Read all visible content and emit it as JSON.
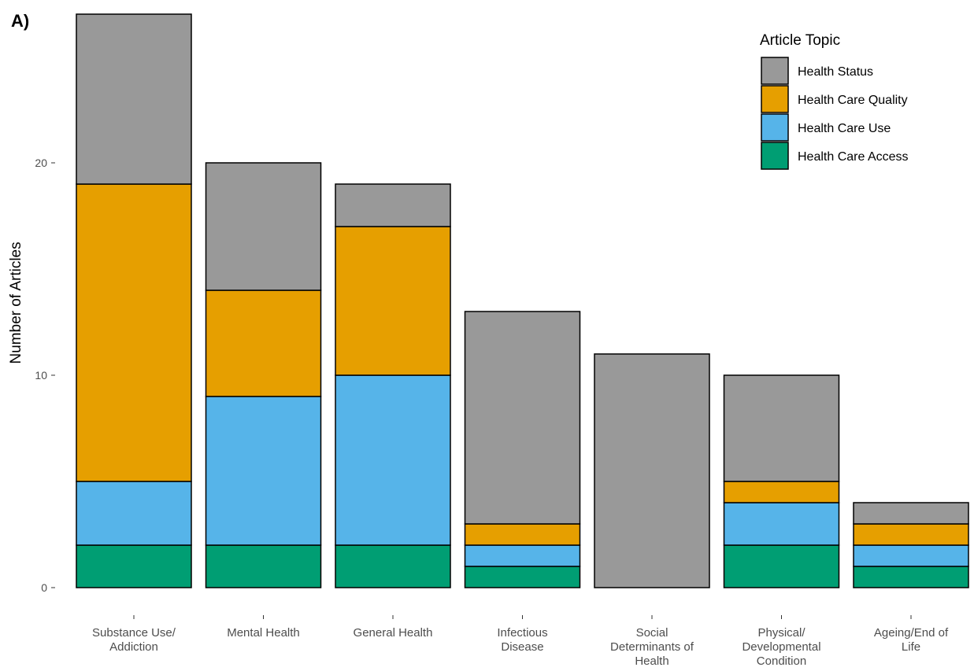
{
  "panel_label": "A)",
  "chart_data": {
    "type": "bar",
    "stacked": true,
    "title": "",
    "xlabel": "",
    "ylabel": "Number of Articles",
    "ylim": [
      0,
      27
    ],
    "yticks": [
      0,
      10,
      20
    ],
    "grid": false,
    "legend": {
      "title": "Article Topic",
      "position": "top-right"
    },
    "categories": [
      [
        "Substance Use/",
        "Addiction"
      ],
      [
        "Mental Health"
      ],
      [
        "General Health"
      ],
      [
        "Infectious",
        "Disease"
      ],
      [
        "Social",
        "Determinants of",
        "Health"
      ],
      [
        "Physical/",
        "Developmental",
        "Condition"
      ],
      [
        "Ageing/End of",
        "Life"
      ]
    ],
    "series": [
      {
        "name": "Health Care Access",
        "color": "#009E73",
        "values": [
          2,
          2,
          2,
          1,
          0,
          2,
          1
        ]
      },
      {
        "name": "Health Care Use",
        "color": "#56B4E9",
        "values": [
          3,
          7,
          8,
          1,
          0,
          2,
          1
        ]
      },
      {
        "name": "Health Care Quality",
        "color": "#E69F00",
        "values": [
          14,
          5,
          7,
          1,
          0,
          1,
          1
        ]
      },
      {
        "name": "Health Status",
        "color": "#999999",
        "values": [
          8,
          6,
          2,
          10,
          11,
          5,
          1
        ]
      }
    ],
    "legend_order": [
      "Health Status",
      "Health Care Quality",
      "Health Care Use",
      "Health Care Access"
    ]
  }
}
